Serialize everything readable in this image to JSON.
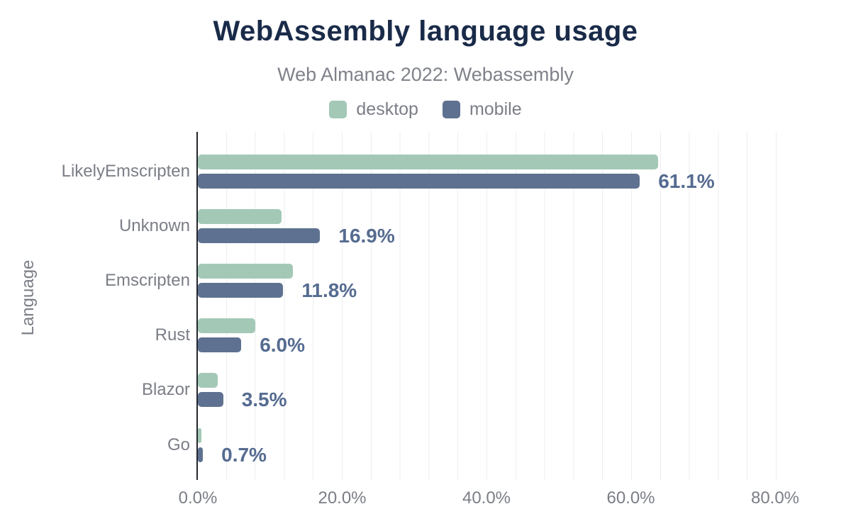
{
  "title": "WebAssembly language usage",
  "subtitle": "Web Almanac 2022: Webassembly",
  "legend": {
    "items": [
      {
        "label": "desktop",
        "color": "#a3c9b6"
      },
      {
        "label": "mobile",
        "color": "#5e7190"
      }
    ]
  },
  "colors": {
    "title_text": "#1a2b49",
    "muted_text": "#7b7e86",
    "subtitle_text": "#7f828a",
    "desktop_series": "#a3c9b6",
    "mobile_series": "#5e7190",
    "data_label_text": "#556b90",
    "gridline": "#eeeef2",
    "axis_line": "#24272d"
  },
  "chart_data": {
    "type": "bar",
    "orientation": "horizontal",
    "title": "WebAssembly language usage",
    "subtitle": "Web Almanac 2022: Webassembly",
    "xlabel": "",
    "ylabel": "Language",
    "xlim": [
      0,
      80
    ],
    "x_tick_labels": [
      "0.0%",
      "20.0%",
      "40.0%",
      "60.0%",
      "80.0%"
    ],
    "x_tick_step_pct": 20,
    "minor_grid_step_pct": 4,
    "grid": "vertical-only",
    "legend_position": "top",
    "categories": [
      "LikelyEmscripten",
      "Unknown",
      "Emscripten",
      "Rust",
      "Blazor",
      "Go"
    ],
    "series": [
      {
        "name": "desktop",
        "color": "#a3c9b6",
        "values": [
          63.6,
          11.6,
          13.1,
          7.9,
          2.7,
          0.5
        ]
      },
      {
        "name": "mobile",
        "color": "#5e7190",
        "values": [
          61.1,
          16.9,
          11.8,
          6.0,
          3.5,
          0.7
        ]
      }
    ],
    "data_labels": {
      "labeled_series": "mobile",
      "values": [
        "61.1%",
        "16.9%",
        "11.8%",
        "6.0%",
        "3.5%",
        "0.7%"
      ]
    }
  }
}
